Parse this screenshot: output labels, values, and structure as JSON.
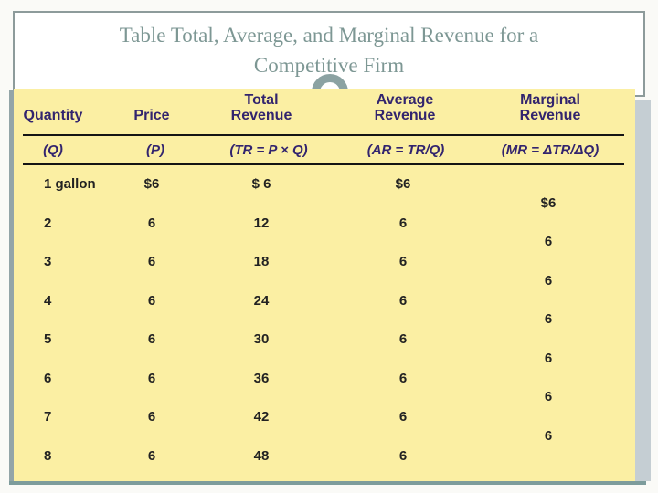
{
  "slide": {
    "title_line1": "Table  Total, Average, and Marginal Revenue for a",
    "title_line2": "Competitive Firm"
  },
  "table": {
    "columns": [
      {
        "line1": "",
        "line2": "Quantity",
        "formula": "(Q)"
      },
      {
        "line1": "",
        "line2": "Price",
        "formula": "(P)"
      },
      {
        "line1": "Total",
        "line2": "Revenue",
        "formula": "(TR = P × Q)"
      },
      {
        "line1": "Average",
        "line2": "Revenue",
        "formula": "(AR = TR/Q)"
      },
      {
        "line1": "Marginal",
        "line2": "Revenue",
        "formula": "(MR = ΔTR/ΔQ)"
      }
    ],
    "rows": [
      {
        "quantity": "1 gallon",
        "price": "$6",
        "total_revenue": "$ 6",
        "average_revenue": "$6"
      },
      {
        "quantity": "2",
        "price": "6",
        "total_revenue": "12",
        "average_revenue": "6"
      },
      {
        "quantity": "3",
        "price": "6",
        "total_revenue": "18",
        "average_revenue": "6"
      },
      {
        "quantity": "4",
        "price": "6",
        "total_revenue": "24",
        "average_revenue": "6"
      },
      {
        "quantity": "5",
        "price": "6",
        "total_revenue": "30",
        "average_revenue": "6"
      },
      {
        "quantity": "6",
        "price": "6",
        "total_revenue": "36",
        "average_revenue": "6"
      },
      {
        "quantity": "7",
        "price": "6",
        "total_revenue": "42",
        "average_revenue": "6"
      },
      {
        "quantity": "8",
        "price": "6",
        "total_revenue": "48",
        "average_revenue": "6"
      }
    ],
    "marginal_values": [
      "$6",
      "6",
      "6",
      "6",
      "6",
      "6",
      "6"
    ]
  },
  "colors": {
    "table_bg": "#fbefa3",
    "header_text": "#32246e",
    "rule": "#141414",
    "title_text": "#7d9794",
    "accent_teal": "#8ba2a2",
    "shadow_gray": "#c5ced3",
    "border_gray": "#8d9b9b"
  }
}
